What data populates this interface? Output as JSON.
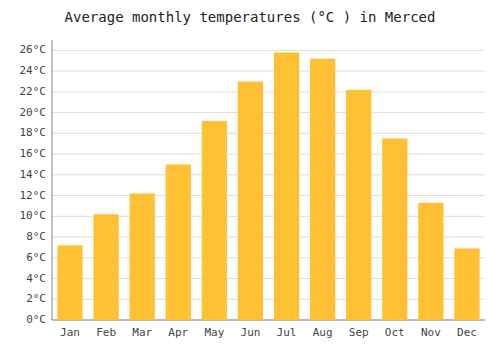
{
  "chart_data": {
    "type": "bar",
    "title": "Average monthly temperatures (°C ) in Merced",
    "categories": [
      "Jan",
      "Feb",
      "Mar",
      "Apr",
      "May",
      "Jun",
      "Jul",
      "Aug",
      "Sep",
      "Oct",
      "Nov",
      "Dec"
    ],
    "values": [
      7.2,
      10.2,
      12.2,
      15.0,
      19.2,
      23.0,
      25.8,
      25.2,
      22.2,
      17.5,
      11.3,
      6.9
    ],
    "color": "#FFC133",
    "ylim": [
      0,
      27
    ],
    "yticks": [
      {
        "value": 0,
        "label": "0°C"
      },
      {
        "value": 2,
        "label": "2°C"
      },
      {
        "value": 4,
        "label": "4°C"
      },
      {
        "value": 6,
        "label": "6°C"
      },
      {
        "value": 8,
        "label": "8°C"
      },
      {
        "value": 10,
        "label": "10°C"
      },
      {
        "value": 12,
        "label": "12°C"
      },
      {
        "value": 14,
        "label": "14°C"
      },
      {
        "value": 16,
        "label": "16°C"
      },
      {
        "value": 18,
        "label": "18°C"
      },
      {
        "value": 20,
        "label": "20°C"
      },
      {
        "value": 22,
        "label": "22°C"
      },
      {
        "value": 24,
        "label": "24°C"
      },
      {
        "value": 26,
        "label": "26°C"
      }
    ],
    "grid": true
  }
}
